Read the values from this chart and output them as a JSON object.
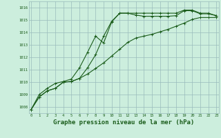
{
  "background_color": "#cceedd",
  "grid_color": "#99bbbb",
  "line_color": "#1a5c1a",
  "xlabel": "Graphe pression niveau de la mer (hPa)",
  "xlabel_fontsize": 6.5,
  "ylim": [
    1007.5,
    1016.5
  ],
  "xlim": [
    -0.3,
    23.3
  ],
  "xticks": [
    0,
    1,
    2,
    3,
    4,
    5,
    6,
    7,
    8,
    9,
    10,
    11,
    12,
    13,
    14,
    15,
    16,
    17,
    18,
    19,
    20,
    21,
    22,
    23
  ],
  "yticks": [
    1008,
    1009,
    1010,
    1011,
    1012,
    1013,
    1014,
    1015,
    1016
  ],
  "series": [
    [
      1007.8,
      1008.8,
      1009.3,
      1009.5,
      1010.0,
      1010.05,
      1010.3,
      1010.65,
      1011.1,
      1011.55,
      1012.1,
      1012.65,
      1013.2,
      1013.55,
      1013.7,
      1013.85,
      1014.05,
      1014.25,
      1014.5,
      1014.75,
      1015.05,
      1015.2,
      1015.2,
      1015.2
    ],
    [
      1007.8,
      1008.8,
      1009.3,
      1009.5,
      1010.0,
      1010.05,
      1010.3,
      1011.15,
      1012.2,
      1013.7,
      1014.9,
      1015.55,
      1015.55,
      1015.4,
      1015.3,
      1015.3,
      1015.3,
      1015.3,
      1015.35,
      1015.75,
      1015.75,
      1015.5,
      1015.5,
      1015.35
    ],
    [
      1007.8,
      1009.0,
      1009.5,
      1009.9,
      1010.05,
      1010.25,
      1011.15,
      1012.4,
      1013.7,
      1013.15,
      1014.85,
      1015.55,
      1015.55,
      1015.55,
      1015.55,
      1015.55,
      1015.55,
      1015.55,
      1015.55,
      1015.8,
      1015.8,
      1015.55,
      1015.55,
      1015.35
    ]
  ]
}
